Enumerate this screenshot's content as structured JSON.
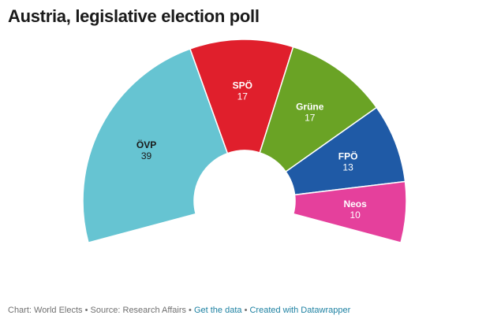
{
  "chart_data": {
    "type": "pie",
    "variant": "parliament-semicircle",
    "title": "Austria, legislative election poll",
    "slices": [
      {
        "label": "ÖVP",
        "value": 39,
        "color": "#66c4d2",
        "text_color": "#1a1a1a"
      },
      {
        "label": "SPÖ",
        "value": 17,
        "color": "#e01f2c",
        "text_color": "#ffffff"
      },
      {
        "label": "Grüne",
        "value": 17,
        "color": "#6aa325",
        "text_color": "#ffffff"
      },
      {
        "label": "FPÖ",
        "value": 13,
        "color": "#1f5aa6",
        "text_color": "#ffffff"
      },
      {
        "label": "Neos",
        "value": 10,
        "color": "#e5409c",
        "text_color": "#ffffff"
      }
    ]
  },
  "footer": {
    "chart_credit": "Chart: World Elects",
    "separator": " • ",
    "source": "Source: Research Affairs",
    "get_data": "Get the data",
    "created_with": "Created with Datawrapper"
  }
}
